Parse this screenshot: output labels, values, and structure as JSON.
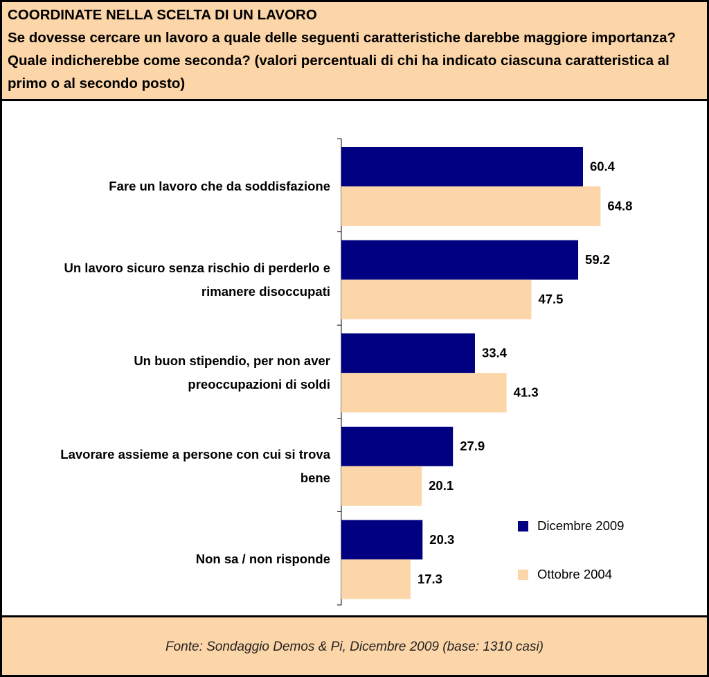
{
  "chart_data": {
    "type": "bar",
    "orientation": "horizontal",
    "title": "COORDINATE NELLA SCELTA DI UN LAVORO",
    "subtitle": "Se dovesse cercare un lavoro a quale delle seguenti caratteristiche darebbe maggiore importanza? Quale indicherebbe come seconda? (valori percentuali di chi ha indicato ciascuna caratteristica al primo o al secondo posto)",
    "source": "Fonte: Sondaggio Demos & Pi, Dicembre 2009 (base: 1310 casi)",
    "categories": [
      "Fare un lavoro che da soddisfazione",
      "Un lavoro sicuro senza rischio di perderlo e rimanere disoccupati",
      "Un buon stipendio, per non aver preoccupazioni di soldi",
      "Lavorare assieme a persone con cui si trova bene",
      "Non sa / non risponde"
    ],
    "series": [
      {
        "name": "Dicembre 2009",
        "color": "#000080",
        "values": [
          60.4,
          59.2,
          33.4,
          27.9,
          20.3
        ]
      },
      {
        "name": "Ottobre 2004",
        "color": "#FCD5A8",
        "values": [
          64.8,
          47.5,
          41.3,
          20.1,
          17.3
        ]
      }
    ],
    "xlim": [
      0,
      90
    ],
    "legend": "lower right"
  }
}
